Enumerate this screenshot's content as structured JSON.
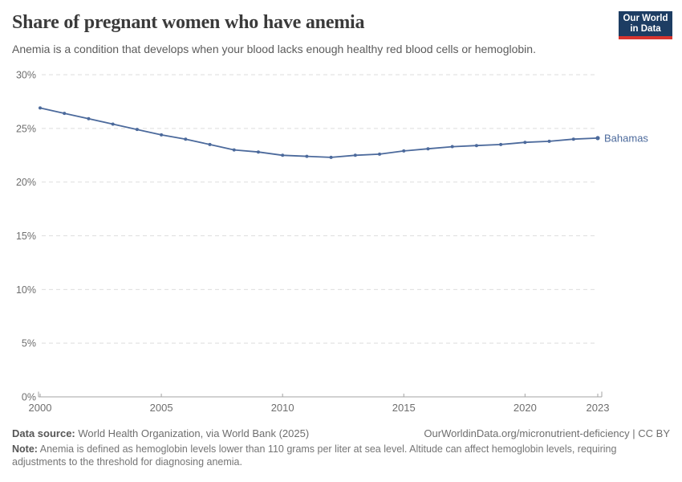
{
  "header": {
    "title": "Share of pregnant women who have anemia",
    "subtitle": "Anemia is a condition that develops when your blood lacks enough healthy red blood cells or hemoglobin.",
    "logo": {
      "line1": "Our World",
      "line2": "in Data",
      "bg_color": "#1d3d63",
      "accent_color": "#d8352f"
    }
  },
  "chart_data": {
    "type": "line",
    "x": [
      2000,
      2001,
      2002,
      2003,
      2004,
      2005,
      2006,
      2007,
      2008,
      2009,
      2010,
      2011,
      2012,
      2013,
      2014,
      2015,
      2016,
      2017,
      2018,
      2019,
      2020,
      2021,
      2022,
      2023
    ],
    "series": [
      {
        "name": "Bahamas",
        "color": "#4c6a9c",
        "values": [
          26.9,
          26.4,
          25.9,
          25.4,
          24.9,
          24.4,
          24.0,
          23.5,
          23.0,
          22.8,
          22.5,
          22.4,
          22.3,
          22.5,
          22.6,
          22.9,
          23.1,
          23.3,
          23.4,
          23.5,
          23.7,
          23.8,
          24.0,
          24.1
        ]
      }
    ],
    "title": "Share of pregnant women who have anemia",
    "xlabel": "",
    "ylabel": "",
    "xlim": [
      2000,
      2023
    ],
    "ylim": [
      0,
      30
    ],
    "x_ticks": [
      2000,
      2005,
      2010,
      2015,
      2020,
      2023
    ],
    "y_ticks": [
      0,
      5,
      10,
      15,
      20,
      25,
      30
    ],
    "y_tick_suffix": "%",
    "grid": "horizontal-dashed",
    "legend_position": "end-of-line-label",
    "colors": {
      "grid": "#dedede",
      "axis": "#a3a3a3",
      "tick_text": "#6e6e6e"
    }
  },
  "footer": {
    "datasource_label": "Data source:",
    "datasource_text": " World Health Organization, via World Bank (2025)",
    "link_text": "OurWorldinData.org/micronutrient-deficiency | CC BY",
    "note_label": "Note:",
    "note_text": " Anemia is defined as hemoglobin levels lower than 110 grams per liter at sea level. Altitude can affect hemoglobin levels, requiring adjustments to the threshold for diagnosing anemia."
  }
}
